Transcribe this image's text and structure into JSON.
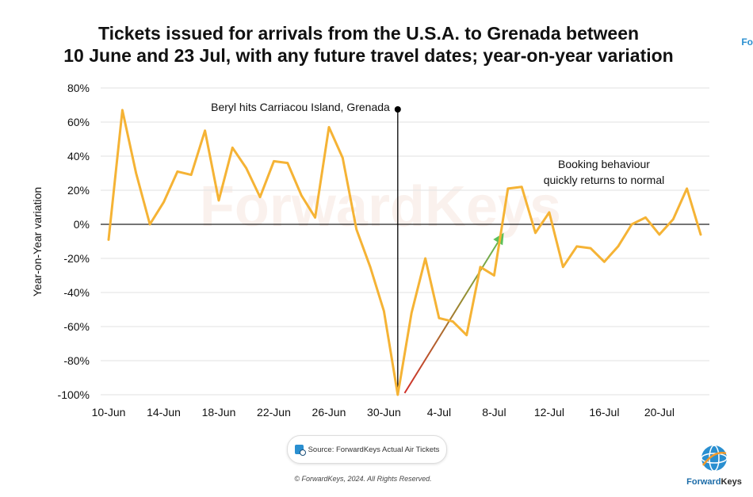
{
  "title_lines": [
    "Tickets issued for arrivals from the U.S.A. to Grenada between",
    "10 June and 23 Jul, with any future travel dates; year-on-year variation"
  ],
  "corner_tag": "Fo",
  "watermark": "ForwardKeys",
  "source": "Source: ForwardKeys Actual Air Tickets",
  "copyright": "© ForwardKeys, 2024. All Rights Reserved.",
  "logo": {
    "word1": "Forward",
    "word2": "Keys"
  },
  "colors": {
    "line": "#F5B335",
    "arrow_start": "#d0302a",
    "arrow_end": "#5cc05a",
    "marker": "#000000"
  },
  "chart_data": {
    "type": "line",
    "title": "Tickets issued for arrivals from the U.S.A. to Grenada between 10 June and 23 Jul, with any future travel dates; year-on-year variation",
    "xlabel": "",
    "ylabel": "Year-on-Year variation",
    "ylim": [
      -100,
      80
    ],
    "y_ticks": [
      80,
      60,
      40,
      20,
      0,
      -20,
      -40,
      -60,
      -80,
      -100
    ],
    "y_tick_labels": [
      "80%",
      "60%",
      "40%",
      "20%",
      "0%",
      "-20%",
      "-40%",
      "-60%",
      "-80%",
      "-100%"
    ],
    "x_tick_labels": [
      "10-Jun",
      "14-Jun",
      "18-Jun",
      "22-Jun",
      "26-Jun",
      "30-Jun",
      "4-Jul",
      "8-Jul",
      "12-Jul",
      "16-Jul",
      "20-Jul"
    ],
    "x_tick_index": [
      0,
      4,
      8,
      12,
      16,
      20,
      24,
      28,
      32,
      36,
      40
    ],
    "series": [
      {
        "name": "Year-on-year variation",
        "values": [
          -9,
          67,
          30,
          0,
          13,
          31,
          29,
          55,
          14,
          45,
          33,
          16,
          37,
          36,
          17,
          4,
          57,
          39,
          -3,
          -25,
          -51,
          -100,
          -52,
          -20,
          -55,
          -57,
          -65,
          -25,
          -30,
          21,
          22,
          -5,
          7,
          -25,
          -13,
          -14,
          -22,
          -13,
          0,
          4,
          -6,
          3,
          21,
          -6
        ]
      }
    ],
    "annotations": [
      {
        "text": "Beryl hits Carriacou Island, Grenada",
        "x_index": 21,
        "type": "vertical-line"
      },
      {
        "text_lines": [
          "Booking behaviour",
          "quickly returns to normal"
        ],
        "type": "note"
      },
      {
        "type": "trend-arrow",
        "from": [
          21.5,
          -99
        ],
        "to": [
          28.7,
          -5
        ]
      }
    ]
  }
}
